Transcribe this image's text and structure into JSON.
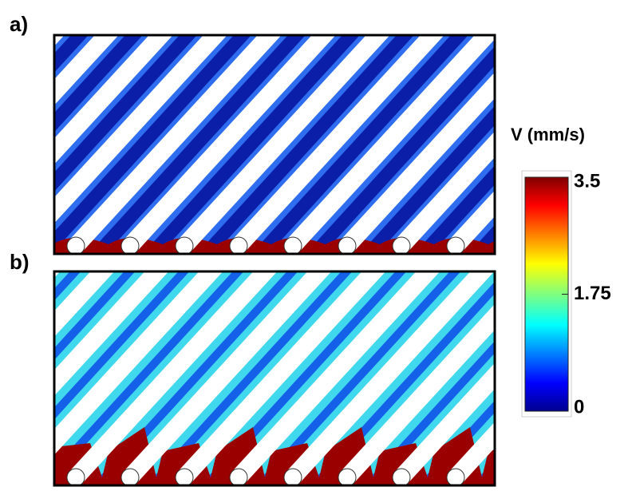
{
  "panels": [
    {
      "label": "a)"
    },
    {
      "label": "b)"
    }
  ],
  "colorbar": {
    "title": "V (mm/s)",
    "lim": [
      0,
      3.5
    ],
    "ticks": [
      0,
      1.75,
      3.5
    ]
  }
}
